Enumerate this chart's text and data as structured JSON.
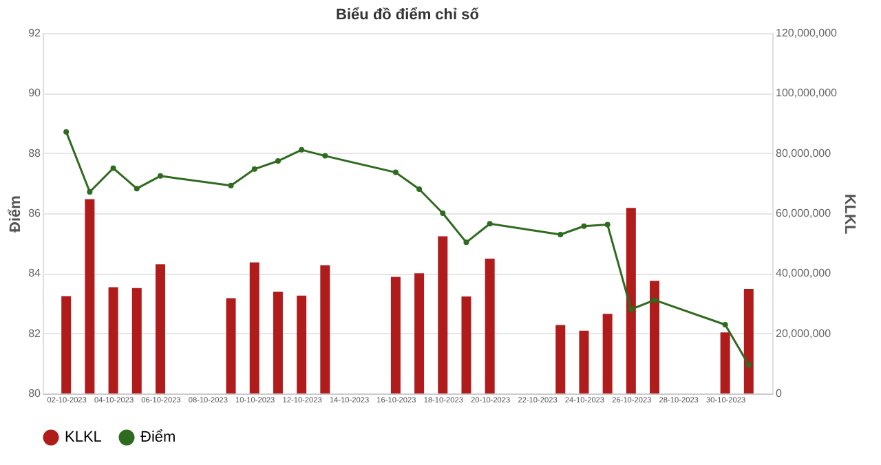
{
  "chart_data": {
    "type": "bar",
    "title": "Biểu đồ điểm chỉ số",
    "ylabel": "Điểm",
    "y2label": "KLKL",
    "x": [
      "2023-10-02",
      "2023-10-03",
      "2023-10-04",
      "2023-10-05",
      "2023-10-06",
      "2023-10-09",
      "2023-10-10",
      "2023-10-11",
      "2023-10-12",
      "2023-10-13",
      "2023-10-16",
      "2023-10-17",
      "2023-10-18",
      "2023-10-19",
      "2023-10-20",
      "2023-10-23",
      "2023-10-24",
      "2023-10-25",
      "2023-10-26",
      "2023-10-27",
      "2023-10-30",
      "2023-10-31"
    ],
    "series": [
      {
        "name": "KLKL",
        "axis": "y2",
        "color": "#b01c1c",
        "values": [
          32400000,
          64700000,
          35400000,
          35100000,
          43000000,
          31700000,
          43600000,
          33900000,
          32600000,
          42700000,
          38800000,
          40000000,
          52300000,
          32300000,
          44900000,
          22800000,
          20900000,
          26500000,
          61800000,
          37500000,
          20300000,
          34800000
        ]
      },
      {
        "name": "Điểm",
        "type": "line",
        "axis": "y",
        "color": "#2e6b1e",
        "marker": "circle",
        "values": [
          88.71,
          86.71,
          87.5,
          86.82,
          87.24,
          86.92,
          87.47,
          87.74,
          88.11,
          87.91,
          87.36,
          86.8,
          86.0,
          85.03,
          85.65,
          85.29,
          85.57,
          85.62,
          82.8,
          83.11,
          82.29,
          80.95
        ]
      }
    ],
    "xlim": [
      "2023-10-01",
      "2023-11-01"
    ],
    "xticks": [
      {
        "value": "2023-10-02",
        "label": "02-10-2023"
      },
      {
        "value": "2023-10-04",
        "label": "04-10-2023"
      },
      {
        "value": "2023-10-06",
        "label": "06-10-2023"
      },
      {
        "value": "2023-10-08",
        "label": "08-10-2023"
      },
      {
        "value": "2023-10-10",
        "label": "10-10-2023"
      },
      {
        "value": "2023-10-12",
        "label": "12-10-2023"
      },
      {
        "value": "2023-10-14",
        "label": "14-10-2023"
      },
      {
        "value": "2023-10-16",
        "label": "16-10-2023"
      },
      {
        "value": "2023-10-18",
        "label": "18-10-2023"
      },
      {
        "value": "2023-10-20",
        "label": "20-10-2023"
      },
      {
        "value": "2023-10-22",
        "label": "22-10-2023"
      },
      {
        "value": "2023-10-24",
        "label": "24-10-2023"
      },
      {
        "value": "2023-10-26",
        "label": "26-10-2023"
      },
      {
        "value": "2023-10-28",
        "label": "28-10-2023"
      },
      {
        "value": "2023-10-30",
        "label": "30-10-2023"
      }
    ],
    "ylim": [
      80,
      92
    ],
    "yticks": [
      80,
      82,
      84,
      86,
      88,
      90,
      92
    ],
    "y2lim": [
      0,
      120000000
    ],
    "y2ticks": [
      0,
      {
        "value": 20000000,
        "label": "20,000,000"
      },
      {
        "value": 40000000,
        "label": "40,000,000"
      },
      {
        "value": 60000000,
        "label": "60,000,000"
      },
      {
        "value": 80000000,
        "label": "80,000,000"
      },
      {
        "value": 100000000,
        "label": "100,000,000"
      },
      {
        "value": 120000000,
        "label": "120,000,000"
      }
    ],
    "grid": "y",
    "legend": "bottom"
  }
}
